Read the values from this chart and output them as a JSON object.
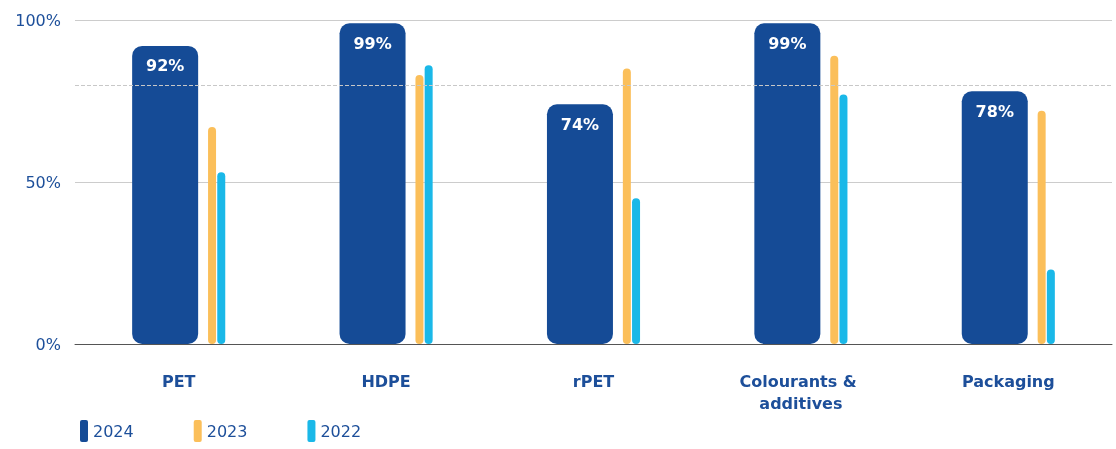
{
  "chart_data": {
    "type": "bar",
    "categories": [
      "PET",
      "HDPE",
      "rPET",
      "Colourants & additives",
      "Packaging"
    ],
    "series": [
      {
        "name": "2024",
        "color": "#154b96",
        "values": [
          92,
          99,
          74,
          99,
          78
        ],
        "value_labels": [
          "92%",
          "99%",
          "74%",
          "99%",
          "78%"
        ]
      },
      {
        "name": "2023",
        "color": "#fbbf5a",
        "values": [
          67,
          83,
          85,
          89,
          72
        ]
      },
      {
        "name": "2022",
        "color": "#1ab8e8",
        "values": [
          53,
          86,
          45,
          77,
          23
        ]
      }
    ],
    "ylim": [
      0,
      100
    ],
    "yticks": [
      {
        "value": 0,
        "label": "0%"
      },
      {
        "value": 50,
        "label": "50%"
      },
      {
        "value": 100,
        "label": "100%"
      }
    ],
    "ref_lines": [
      {
        "axis": "y",
        "value": 80,
        "color": "#c8c8c8",
        "line_style": "dashed"
      }
    ],
    "grid": "y",
    "legend": "bottom left"
  }
}
